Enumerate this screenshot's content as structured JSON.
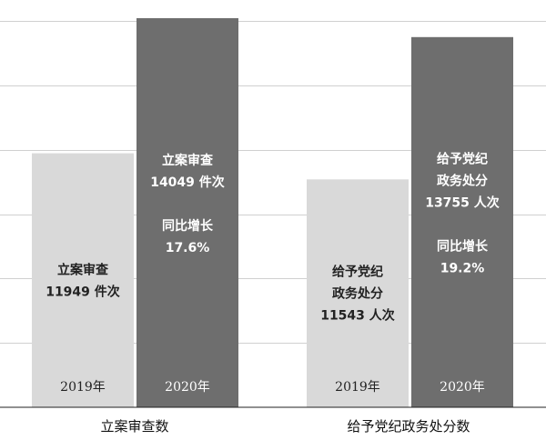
{
  "chart_data": {
    "type": "bar",
    "categories": [
      "立案审查数",
      "给予党纪政务处分数"
    ],
    "series": [
      {
        "name": "2019年",
        "values": [
          11949,
          11543
        ],
        "color": "#d9d9d9",
        "text_color": "#222222"
      },
      {
        "name": "2020年",
        "values": [
          14049,
          13755
        ],
        "color": "#6e6e6e",
        "text_color": "#ffffff"
      }
    ],
    "ylim": [
      8000,
      14500
    ],
    "grid": true,
    "grid_color": "#d0d0d0",
    "legend": "none",
    "annotations": [
      [
        {
          "lines": [
            "立案审查",
            "11949 件次"
          ]
        },
        {
          "lines": [
            "立案审查",
            "14049 件次",
            "",
            "同比增长",
            "17.6%"
          ]
        }
      ],
      [
        {
          "lines": [
            "给予党纪",
            "政务处分",
            "11543 人次"
          ]
        },
        {
          "lines": [
            "给予党纪",
            "政务处分",
            "13755 人次",
            "",
            "同比增长",
            "19.2%"
          ]
        }
      ]
    ]
  }
}
